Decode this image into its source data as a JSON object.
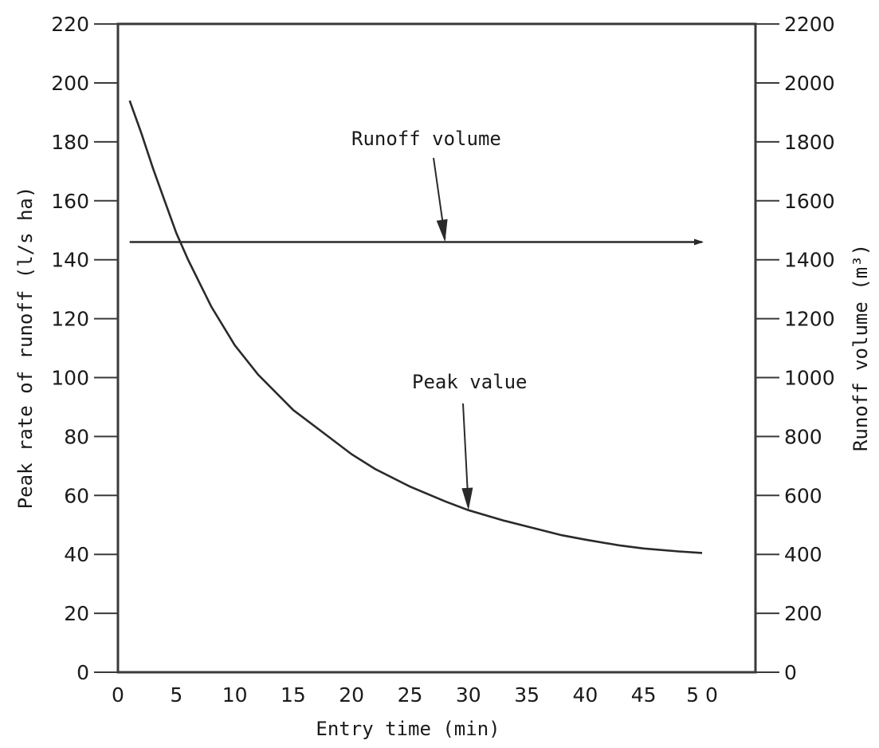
{
  "chart_data": {
    "type": "line",
    "xlabel": "Entry time (min)",
    "ylabel": "Peak rate of runoff (l/s ha)",
    "ylabel_right": "Runoff volume (m³)",
    "xlim": [
      0,
      55
    ],
    "ylim": [
      0,
      220
    ],
    "ylim_right": [
      0,
      2200
    ],
    "x_ticks": [
      0,
      5,
      10,
      15,
      20,
      25,
      30,
      35,
      40,
      45,
      50
    ],
    "x_tick_labels": [
      "0",
      "5",
      "10",
      "15",
      "20",
      "25",
      "30",
      "35",
      "40",
      "45",
      "5 0"
    ],
    "y_ticks": [
      0,
      20,
      40,
      60,
      80,
      100,
      120,
      140,
      160,
      180,
      200,
      220
    ],
    "y_tick_labels": [
      "0",
      "20",
      "40",
      "60",
      "80",
      "100",
      "120",
      "140",
      "160",
      "180",
      "200",
      "220"
    ],
    "y_right_ticks": [
      0,
      200,
      400,
      600,
      800,
      1000,
      1200,
      1400,
      1600,
      1800,
      2000,
      2200
    ],
    "y_right_tick_labels": [
      "0",
      "200",
      "400",
      "600",
      "800",
      "1000",
      "1200",
      "1400",
      "1600",
      "1800",
      "2000",
      "2200"
    ],
    "grid": false,
    "series": [
      {
        "name": "Peak value",
        "axis": "left",
        "x": [
          1,
          2,
          3,
          4,
          5,
          6,
          8,
          10,
          12,
          15,
          18,
          20,
          22,
          25,
          28,
          30,
          33,
          35,
          38,
          40,
          43,
          45,
          48,
          50
        ],
        "y": [
          194,
          183,
          171,
          160,
          149,
          140,
          124,
          111,
          101,
          89,
          80,
          74,
          69,
          63,
          58,
          55,
          51.5,
          49.5,
          46.5,
          45,
          43,
          42,
          41,
          40.5
        ]
      },
      {
        "name": "Runoff volume",
        "axis": "right",
        "x": [
          1,
          50
        ],
        "y": [
          1460,
          1460
        ]
      }
    ],
    "annotations": [
      {
        "text": "Runoff volume",
        "series": "Runoff volume",
        "point_x": 28,
        "point_y": 146
      },
      {
        "text": "Peak value",
        "series": "Peak value",
        "point_x": 30,
        "point_y": 55
      }
    ]
  }
}
